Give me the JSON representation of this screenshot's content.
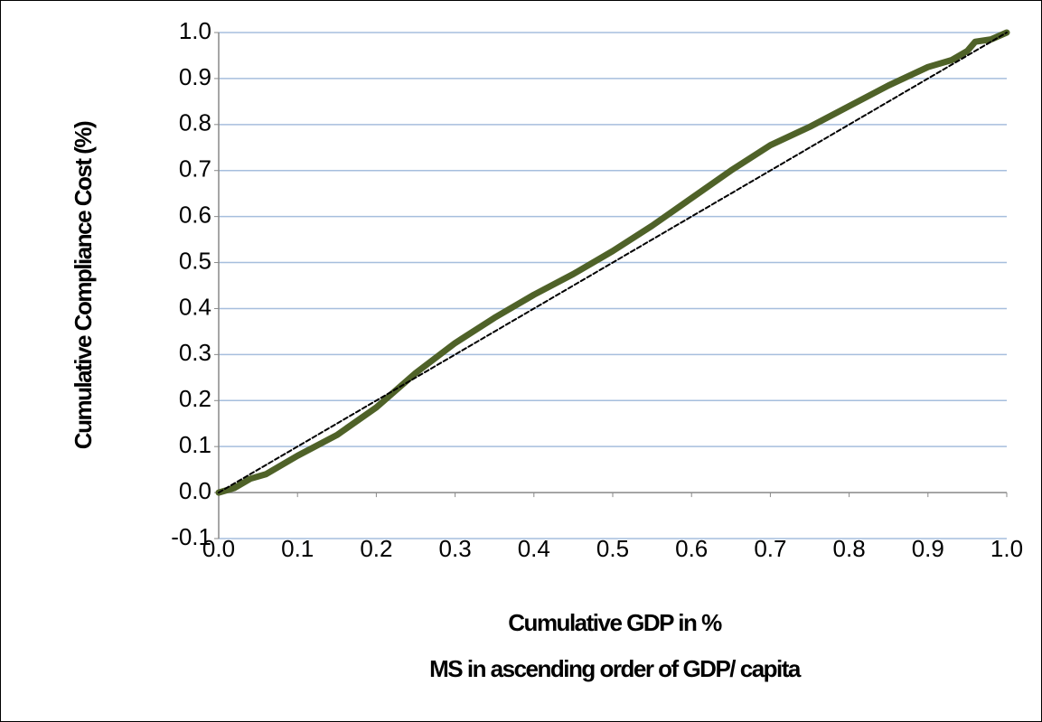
{
  "chart_data": {
    "type": "line",
    "xlabel": [
      "Cumulative GDP in %",
      "MS in ascending order of GDP/ capita"
    ],
    "ylabel": "Cumulative Compliance Cost (%)",
    "series": [
      {
        "color": "#4f6228",
        "style": "solid",
        "x": [
          0,
          0.02,
          0.04,
          0.06,
          0.1,
          0.15,
          0.2,
          0.25,
          0.3,
          0.35,
          0.4,
          0.45,
          0.5,
          0.55,
          0.6,
          0.65,
          0.7,
          0.75,
          0.8,
          0.85,
          0.9,
          0.93,
          0.95,
          0.96,
          0.98,
          1.0
        ],
        "values": [
          0,
          0.01,
          0.03,
          0.04,
          0.08,
          0.125,
          0.185,
          0.26,
          0.325,
          0.38,
          0.43,
          0.475,
          0.525,
          0.58,
          0.64,
          0.7,
          0.755,
          0.795,
          0.84,
          0.885,
          0.925,
          0.94,
          0.96,
          0.98,
          0.985,
          1.0
        ]
      },
      {
        "color": "#000000",
        "style": "dashed",
        "x": [
          0,
          1.0
        ],
        "values": [
          0,
          1.0
        ]
      }
    ],
    "xlim": [
      0,
      1.0
    ],
    "xticks": [
      {
        "value": 0,
        "label": "0.0"
      },
      0.1,
      0.2,
      0.3,
      0.4,
      0.5,
      0.6,
      0.7,
      0.8,
      0.9,
      {
        "value": 1,
        "label": "1.0"
      }
    ],
    "ylim": [
      -0.1,
      1.0
    ],
    "yticks": [
      -0.1,
      {
        "value": 0,
        "label": "0.0"
      },
      0.1,
      0.2,
      0.3,
      0.4,
      0.5,
      0.6,
      0.7,
      0.8,
      0.9,
      {
        "value": 1,
        "label": "1.0"
      }
    ],
    "grid": true
  }
}
